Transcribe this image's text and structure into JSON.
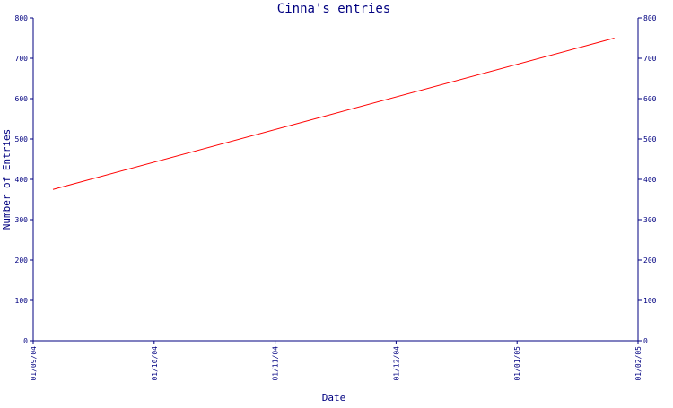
{
  "chart_data": {
    "type": "line",
    "title": "Cinna's entries",
    "xlabel": "Date",
    "ylabel": "Number of Entries",
    "x_ticks": [
      "01/09/04",
      "01/10/04",
      "01/11/04",
      "01/12/04",
      "01/01/05",
      "01/02/05"
    ],
    "xlim": [
      "2004-09-01",
      "2005-02-01"
    ],
    "ylim": [
      0,
      800
    ],
    "y_ticks": [
      0,
      100,
      200,
      300,
      400,
      500,
      600,
      700,
      800
    ],
    "y_axis_right": true,
    "grid": false,
    "legend": "none",
    "series": [
      {
        "color": "#ff0000",
        "points": [
          {
            "x": "2004-09-06",
            "y": 375
          },
          {
            "x": "2005-01-26",
            "y": 750
          }
        ]
      }
    ]
  },
  "colors": {
    "axis": "#000080",
    "series": "#ff0000",
    "background": "#ffffff"
  }
}
